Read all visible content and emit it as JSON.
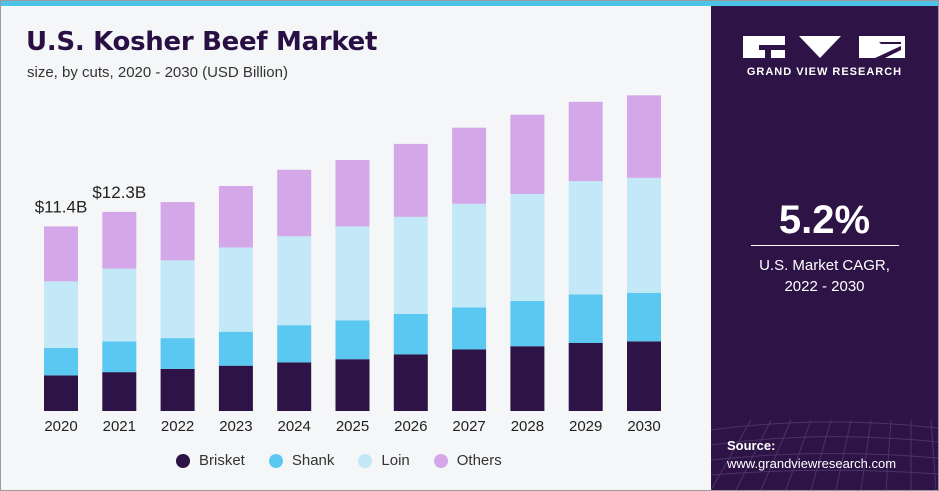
{
  "header": {
    "title": "U.S. Kosher Beef Market",
    "subtitle": "size, by cuts, 2020 - 2030 (USD Billion)"
  },
  "sidebar": {
    "brand": "GRAND VIEW RESEARCH",
    "cagr_value": "5.2%",
    "cagr_label_line1": "U.S. Market CAGR,",
    "cagr_label_line2": "2022 - 2030",
    "source_label": "Source:",
    "source_url": "www.grandviewresearch.com"
  },
  "colors": {
    "title": "#2a0f45",
    "sidebar_bg": "#2e1346",
    "accent_bar": "#4ec3e8",
    "Brisket": "#2e1346",
    "Shank": "#5bc8f2",
    "Loin": "#c3e8f7",
    "Others": "#d4a8e8"
  },
  "chart_data": {
    "type": "bar",
    "stacked": true,
    "title": "U.S. Kosher Beef Market",
    "subtitle": "size, by cuts, 2020 - 2030 (USD Billion)",
    "categories": [
      "2020",
      "2021",
      "2022",
      "2023",
      "2024",
      "2025",
      "2026",
      "2027",
      "2028",
      "2029",
      "2030"
    ],
    "series": [
      {
        "name": "Brisket",
        "values": [
          2.2,
          2.4,
          2.6,
          2.8,
          3.0,
          3.2,
          3.5,
          3.8,
          4.0,
          4.2,
          4.3
        ]
      },
      {
        "name": "Shank",
        "values": [
          1.7,
          1.9,
          1.9,
          2.1,
          2.3,
          2.4,
          2.5,
          2.6,
          2.8,
          3.0,
          3.0
        ]
      },
      {
        "name": "Loin",
        "values": [
          4.1,
          4.5,
          4.8,
          5.2,
          5.5,
          5.8,
          6.0,
          6.4,
          6.6,
          7.0,
          7.1
        ]
      },
      {
        "name": "Others",
        "values": [
          3.4,
          3.5,
          3.6,
          3.8,
          4.1,
          4.1,
          4.5,
          4.7,
          4.9,
          4.9,
          5.1
        ]
      }
    ],
    "data_labels": [
      {
        "category": "2020",
        "text": "$11.4B"
      },
      {
        "category": "2021",
        "text": "$12.3B"
      }
    ],
    "ylim": [
      0,
      21
    ],
    "grid": false,
    "legend_position": "bottom"
  }
}
